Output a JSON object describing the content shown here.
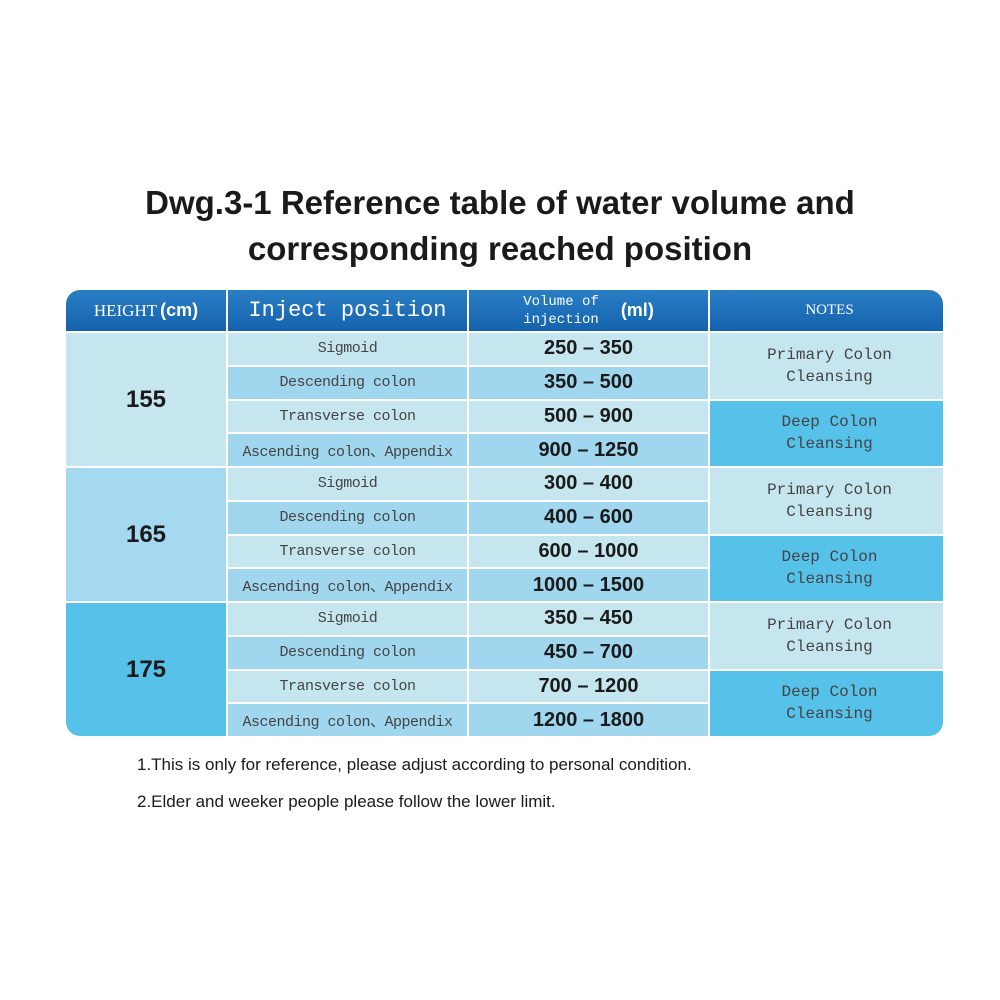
{
  "title": [
    "Dwg.3-1 Reference table of water volume and",
    "corresponding reached position"
  ],
  "header": {
    "height": "HEIGHT",
    "height_unit": "(cm)",
    "position": "Inject position",
    "volume_line1": "Volume of",
    "volume_line2": "injection",
    "volume_unit": "(ml)",
    "notes": "NOTES"
  },
  "groups": [
    {
      "height": "155",
      "color": "#c6e6ef",
      "rows": [
        [
          "Sigmoid",
          "250 – 350"
        ],
        [
          "Descending colon",
          "350 – 500"
        ],
        [
          "Transverse colon",
          "500 – 900"
        ],
        [
          "Ascending colon、Appendix",
          "900 – 1250"
        ]
      ]
    },
    {
      "height": "165",
      "color": "#a4d9f0",
      "rows": [
        [
          "Sigmoid",
          "300 – 400"
        ],
        [
          "Descending colon",
          "400 – 600"
        ],
        [
          "Transverse colon",
          "600 – 1000"
        ],
        [
          "Ascending colon、Appendix",
          "1000 – 1500"
        ]
      ]
    },
    {
      "height": "175",
      "color": "#56c1e9",
      "rows": [
        [
          "Sigmoid",
          "350 – 450"
        ],
        [
          "Descending colon",
          "450 – 700"
        ],
        [
          "Transverse colon",
          "700 – 1200"
        ],
        [
          "Ascending colon、Appendix",
          "1200 – 1800"
        ]
      ]
    }
  ],
  "notes": {
    "primary": [
      "Primary Colon",
      "Cleansing"
    ],
    "deep": [
      "Deep Colon",
      "Cleansing"
    ]
  },
  "footnotes": [
    "1.This is only for reference, please adjust according to personal condition.",
    "2.Elder and weeker people please follow the lower limit."
  ]
}
